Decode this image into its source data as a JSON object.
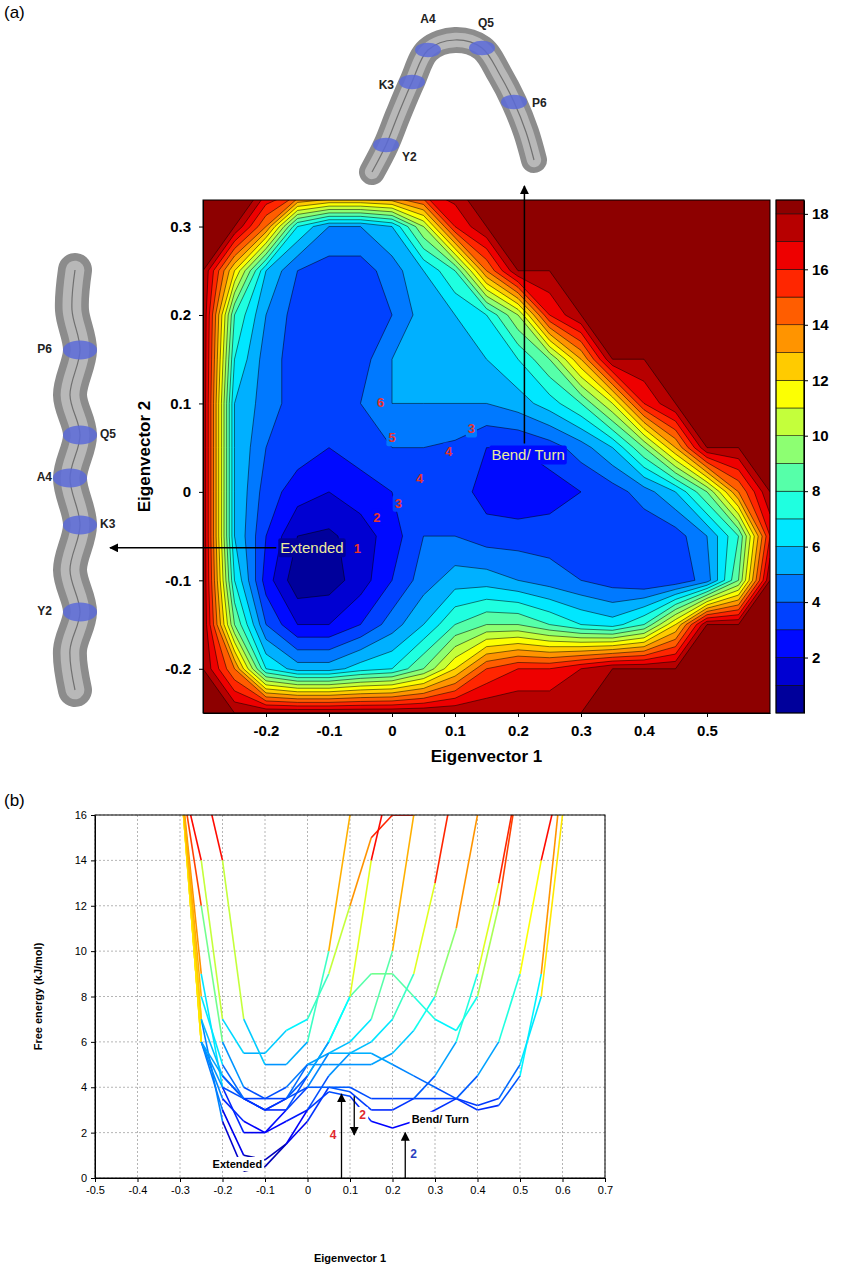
{
  "chart_data": [
    {
      "type": "contour",
      "panel_label": "(a)",
      "x_label": "Eigenvector 1",
      "y_label": "Eigenvector 2",
      "xlim": [
        -0.3,
        0.6
      ],
      "xticks": [
        -0.2,
        -0.1,
        0,
        0.1,
        0.2,
        0.3,
        0.4,
        0.5
      ],
      "ylim": [
        -0.25,
        0.33
      ],
      "yticks": [
        -0.2,
        -0.1,
        0,
        0.1,
        0.2,
        0.3
      ],
      "x": [
        -0.3,
        -0.25,
        -0.2,
        -0.15,
        -0.1,
        -0.05,
        0,
        0.05,
        0.1,
        0.15,
        0.2,
        0.25,
        0.3,
        0.35,
        0.4,
        0.45,
        0.5,
        0.55,
        0.6
      ],
      "y": [
        -0.25,
        -0.2,
        -0.15,
        -0.1,
        -0.05,
        0,
        0.05,
        0.1,
        0.15,
        0.2,
        0.25,
        0.3,
        0.35
      ],
      "z": [
        [
          18,
          18,
          18,
          18,
          18,
          18,
          18,
          18,
          18,
          18,
          18,
          18,
          18,
          18,
          18,
          18,
          18,
          18,
          18
        ],
        [
          18,
          14,
          7,
          5.5,
          5.5,
          6.5,
          7,
          9,
          12,
          15,
          16,
          16,
          17,
          18,
          18,
          18,
          18,
          18,
          18
        ],
        [
          18,
          9,
          4,
          2,
          2,
          3,
          4.5,
          6,
          8,
          9,
          9,
          8,
          7,
          6.5,
          8,
          12,
          18,
          18,
          18
        ],
        [
          18,
          7,
          2.5,
          0.3,
          0.5,
          1.5,
          3,
          4.5,
          5.5,
          5.5,
          5,
          4.5,
          4,
          3.5,
          3,
          3.2,
          4.5,
          9,
          18
        ],
        [
          18,
          6,
          3,
          1,
          0.8,
          1.5,
          2.5,
          4,
          4,
          3.5,
          3.5,
          3.5,
          3.5,
          3.5,
          3.2,
          3.5,
          5,
          8,
          16
        ],
        [
          18,
          6,
          3.5,
          2.5,
          2,
          2.5,
          3,
          3.8,
          3.6,
          2.5,
          2.2,
          2.5,
          3,
          3.5,
          4.5,
          6,
          9,
          14,
          18
        ],
        [
          18,
          6,
          4,
          3.5,
          3,
          3.5,
          4,
          4,
          3.8,
          3,
          3,
          3.5,
          4.5,
          6,
          9,
          13,
          18,
          18,
          18
        ],
        [
          18,
          6,
          4.5,
          3.5,
          3.5,
          4,
          5,
          5,
          5,
          5,
          5.5,
          6.5,
          8,
          11,
          16,
          18,
          18,
          18,
          18
        ],
        [
          18,
          7,
          4.5,
          3.5,
          3,
          3.5,
          5,
          5.5,
          5.5,
          6,
          7,
          9,
          13,
          18,
          18,
          18,
          18,
          18,
          18
        ],
        [
          18,
          8,
          5,
          3.5,
          3,
          3,
          4,
          5.5,
          6,
          7,
          10,
          16,
          18,
          18,
          18,
          18,
          18,
          18,
          18
        ],
        [
          18,
          12,
          6,
          4,
          3.5,
          3.5,
          4.5,
          6,
          8,
          14,
          18,
          18,
          18,
          18,
          18,
          18,
          18,
          18,
          18
        ],
        [
          18,
          18,
          14,
          7,
          5,
          5,
          6,
          10,
          16,
          18,
          18,
          18,
          18,
          18,
          18,
          18,
          18,
          18,
          18
        ],
        [
          18,
          18,
          18,
          18,
          18,
          18,
          18,
          18,
          18,
          18,
          18,
          18,
          18,
          18,
          18,
          18,
          18,
          18,
          18
        ]
      ],
      "levels": [
        0,
        1,
        2,
        3,
        4,
        5,
        6,
        7,
        8,
        9,
        10,
        11,
        12,
        13,
        14,
        15,
        16,
        17,
        18
      ],
      "colorbar": {
        "zlim": [
          0,
          18.5
        ],
        "ticks": [
          2,
          4,
          6,
          8,
          10,
          12,
          14,
          16,
          18
        ]
      },
      "annotations": [
        {
          "text": "Extended",
          "x": -0.127,
          "y": -0.065,
          "color": "#ecec9c"
        },
        {
          "text": "Bend/ Turn",
          "x": 0.216,
          "y": 0.04,
          "color": "#ecec9c"
        },
        {
          "text": "1",
          "x": -0.055,
          "y": -0.065,
          "color": "#e8342c"
        },
        {
          "text": "2",
          "x": -0.024,
          "y": -0.03,
          "color": "#e8342c"
        },
        {
          "text": "3",
          "x": 0.01,
          "y": -0.014,
          "color": "#e8342c"
        },
        {
          "text": "4",
          "x": 0.044,
          "y": 0.014,
          "color": "#e8342c"
        },
        {
          "text": "5",
          "x": 0.0,
          "y": 0.06,
          "color": "#e8342c"
        },
        {
          "text": "6",
          "x": -0.018,
          "y": 0.1,
          "color": "#e8342c"
        },
        {
          "text": "4",
          "x": 0.09,
          "y": 0.045,
          "color": "#e8342c"
        },
        {
          "text": "3",
          "x": 0.126,
          "y": 0.07,
          "color": "#e8342c"
        }
      ],
      "extended_structure_labels": [
        "Y2",
        "K3",
        "A4",
        "Q5",
        "P6"
      ],
      "bend_structure_labels": [
        "Y2",
        "K3",
        "A4",
        "Q5",
        "P6"
      ]
    },
    {
      "type": "surface_profile",
      "panel_label": "(b)",
      "x_label": "Eigenvector 1",
      "y_label": "Free energy (kJ/mol)",
      "xlim": [
        -0.5,
        0.7
      ],
      "xticks": [
        -0.5,
        -0.4,
        -0.3,
        -0.2,
        -0.1,
        0,
        0.1,
        0.2,
        0.3,
        0.4,
        0.5,
        0.6,
        0.7
      ],
      "ylim": [
        0,
        16
      ],
      "yticks": [
        0,
        2,
        4,
        6,
        8,
        10,
        12,
        14,
        16
      ],
      "grid": true,
      "annotations": [
        {
          "text": "Extended",
          "x": -0.165,
          "y": 0.3,
          "color": "#000000"
        },
        {
          "text": "Bend/ Turn",
          "x": 0.245,
          "y": 2.3,
          "color": "#000000"
        }
      ],
      "arrows": [
        {
          "label": "4",
          "x": 0.08,
          "from": 0,
          "to": 3.7,
          "color": "#e0282e"
        },
        {
          "label": "2",
          "x": 0.11,
          "from": 3.6,
          "to": 1.9,
          "color": "#e0282e"
        },
        {
          "label": "2",
          "x": 0.23,
          "from": 0,
          "to": 2,
          "color": "#2a3fbf"
        }
      ]
    }
  ]
}
